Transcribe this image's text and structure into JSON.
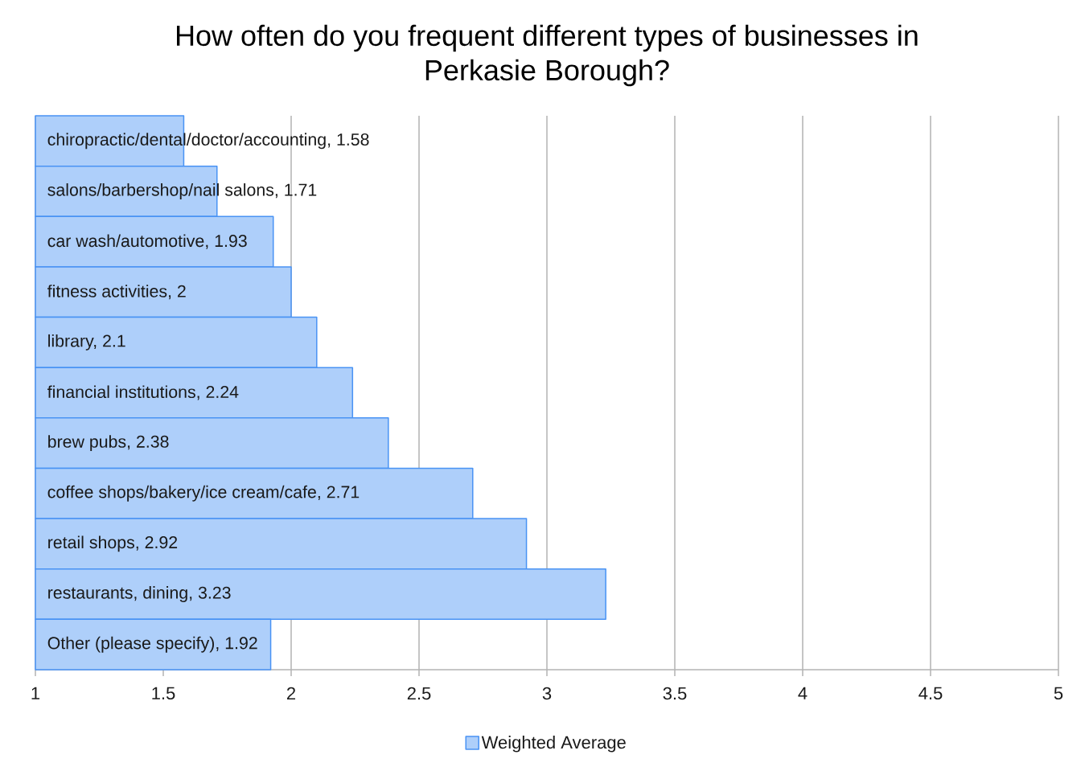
{
  "chart_data": {
    "type": "bar",
    "orientation": "horizontal",
    "title": "How often do you frequent different types of businesses in Perkasie Borough?",
    "categories": [
      null,
      null,
      null,
      null,
      null,
      null,
      null,
      null,
      null,
      null,
      null
    ],
    "series": [
      {
        "name": "Weighted Average",
        "color": "#aecffa",
        "values": [
          1.58,
          1.71,
          1.93,
          2,
          2.1,
          2.24,
          2.38,
          2.71,
          2.92,
          3.23,
          1.92
        ],
        "value_labels": [
          "chiropractic/dental/doctor/accounting, 1.58",
          "salons/barbershop/nail salons, 1.71",
          "car wash/automotive, 1.93",
          "fitness activities, 2",
          "library, 2.1",
          "financial institutions, 2.24",
          "brew pubs, 2.38",
          "coffee shops/bakery/ice cream/cafe, 2.71",
          "retail shops, 2.92",
          "restaurants, dining, 3.23",
          "Other (please specify), 1.92"
        ]
      }
    ],
    "xlim": [
      1,
      5
    ],
    "xticks": [
      1,
      1.5,
      2,
      2.5,
      3,
      3.5,
      4,
      4.5,
      5
    ],
    "grid": "x",
    "legend": "bottom",
    "tick_labels": "x"
  }
}
